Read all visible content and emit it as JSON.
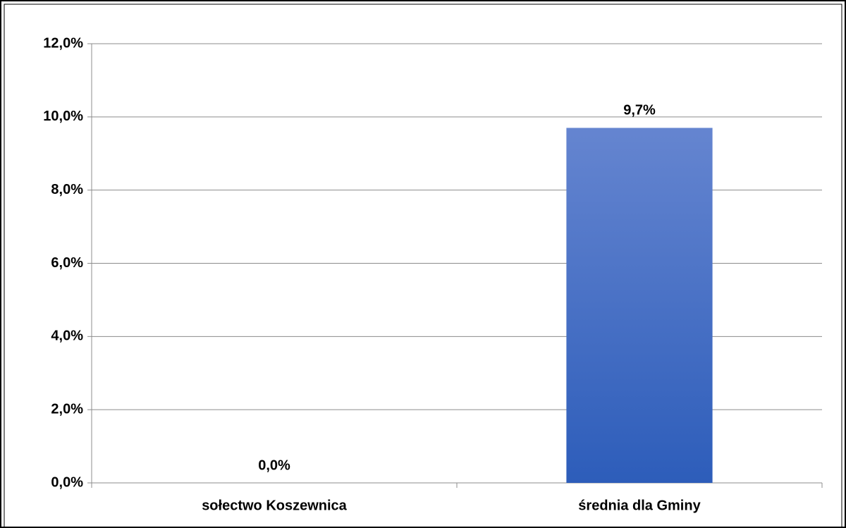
{
  "chart_data": {
    "type": "bar",
    "categories": [
      "sołectwo Koszewnica",
      "średnia dla Gminy"
    ],
    "values": [
      0,
      9.7
    ],
    "value_labels": [
      "0,0%",
      "9,7%"
    ],
    "color": "#4a70c8",
    "ylim": [
      0,
      12
    ],
    "yticks": [
      {
        "value": 0,
        "label": "0,0%"
      },
      {
        "value": 2,
        "label": "2,0%"
      },
      {
        "value": 4,
        "label": "4,0%"
      },
      {
        "value": 6,
        "label": "6,0%"
      },
      {
        "value": 8,
        "label": "8,0%"
      },
      {
        "value": 10,
        "label": "10,0%"
      },
      {
        "value": 12,
        "label": "12,0%"
      }
    ],
    "grid": true
  }
}
